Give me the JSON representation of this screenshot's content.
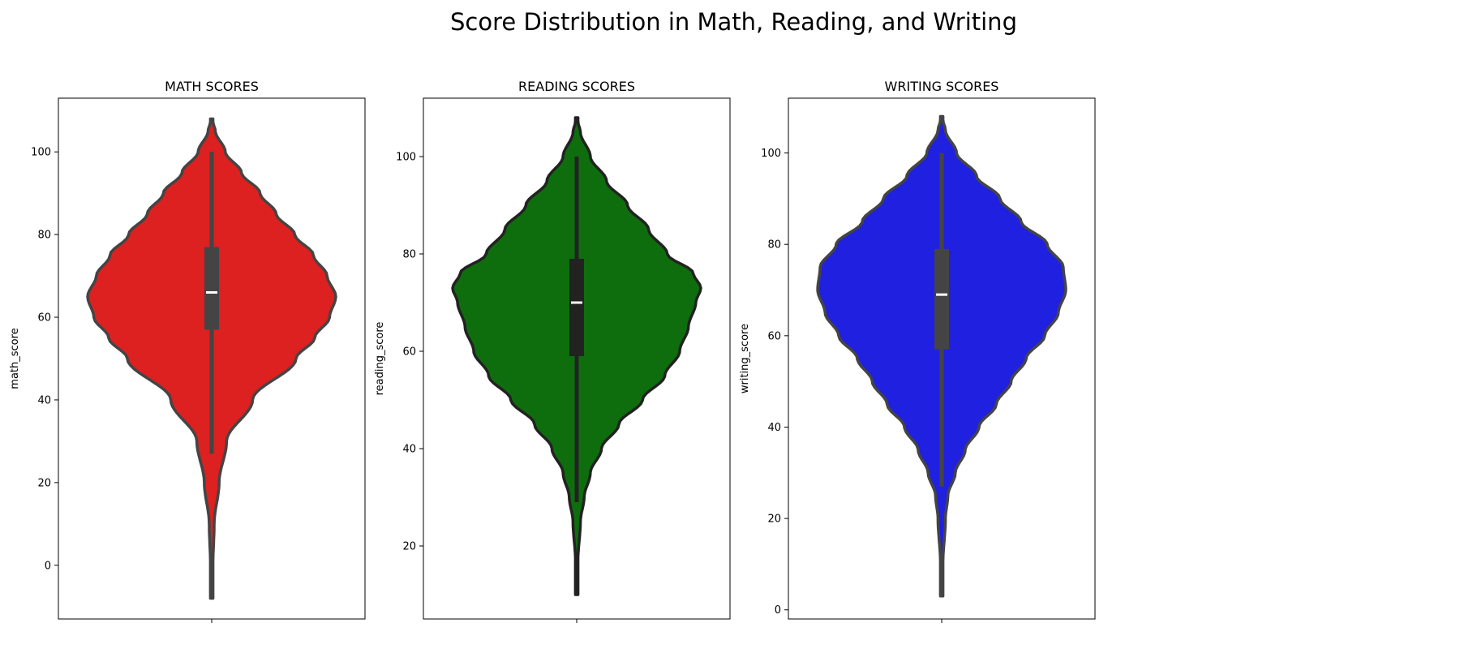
{
  "figure_title": "Score Distribution in Math, Reading, and Writing",
  "chart_data": [
    {
      "type": "violin",
      "title": "MATH SCORES",
      "ylabel": "math_score",
      "xlabel": "",
      "ylim": [
        -13,
        113
      ],
      "yticks": [
        0,
        20,
        40,
        60,
        80,
        100
      ],
      "color": "#dd2020",
      "edge_color": "#444444",
      "grid": false,
      "stats": {
        "min": 0,
        "q1": 57,
        "median": 66,
        "q3": 77,
        "max": 100,
        "whisker_low": 27,
        "whisker_high": 100
      },
      "density_range": [
        -8,
        108
      ],
      "density": [
        [
          -8,
          0.0
        ],
        [
          0,
          0.01
        ],
        [
          10,
          0.02
        ],
        [
          20,
          0.06
        ],
        [
          30,
          0.12
        ],
        [
          40,
          0.33
        ],
        [
          50,
          0.68
        ],
        [
          55,
          0.83
        ],
        [
          60,
          0.95
        ],
        [
          65,
          1.0
        ],
        [
          70,
          0.93
        ],
        [
          75,
          0.82
        ],
        [
          80,
          0.67
        ],
        [
          85,
          0.52
        ],
        [
          90,
          0.39
        ],
        [
          95,
          0.24
        ],
        [
          100,
          0.11
        ],
        [
          105,
          0.03
        ],
        [
          108,
          0.0
        ]
      ]
    },
    {
      "type": "violin",
      "title": "READING SCORES",
      "ylabel": "reading_score",
      "xlabel": "",
      "ylim": [
        5,
        112
      ],
      "yticks": [
        20,
        40,
        60,
        80,
        100
      ],
      "color": "#0e6e0e",
      "edge_color": "#222222",
      "grid": false,
      "stats": {
        "min": 17,
        "q1": 59,
        "median": 70,
        "q3": 79,
        "max": 100,
        "whisker_low": 29,
        "whisker_high": 100
      },
      "density_range": [
        10,
        108
      ],
      "density": [
        [
          10,
          0.0
        ],
        [
          17,
          0.01
        ],
        [
          25,
          0.03
        ],
        [
          30,
          0.06
        ],
        [
          35,
          0.11
        ],
        [
          40,
          0.2
        ],
        [
          45,
          0.34
        ],
        [
          50,
          0.53
        ],
        [
          55,
          0.71
        ],
        [
          60,
          0.83
        ],
        [
          65,
          0.9
        ],
        [
          70,
          0.96
        ],
        [
          73,
          1.0
        ],
        [
          76,
          0.94
        ],
        [
          80,
          0.73
        ],
        [
          85,
          0.58
        ],
        [
          90,
          0.41
        ],
        [
          95,
          0.24
        ],
        [
          100,
          0.11
        ],
        [
          105,
          0.03
        ],
        [
          108,
          0.0
        ]
      ]
    },
    {
      "type": "violin",
      "title": "WRITING SCORES",
      "ylabel": "writing_score",
      "xlabel": "",
      "ylim": [
        -2,
        112
      ],
      "yticks": [
        0,
        20,
        40,
        60,
        80,
        100
      ],
      "color": "#2020e0",
      "edge_color": "#444444",
      "grid": false,
      "stats": {
        "min": 10,
        "q1": 57,
        "median": 69,
        "q3": 79,
        "max": 100,
        "whisker_low": 27,
        "whisker_high": 100
      },
      "density_range": [
        3,
        108
      ],
      "density": [
        [
          3,
          0.0
        ],
        [
          10,
          0.01
        ],
        [
          20,
          0.03
        ],
        [
          25,
          0.05
        ],
        [
          30,
          0.11
        ],
        [
          35,
          0.19
        ],
        [
          40,
          0.3
        ],
        [
          45,
          0.44
        ],
        [
          50,
          0.56
        ],
        [
          55,
          0.68
        ],
        [
          60,
          0.83
        ],
        [
          65,
          0.94
        ],
        [
          70,
          1.0
        ],
        [
          75,
          0.98
        ],
        [
          80,
          0.85
        ],
        [
          85,
          0.64
        ],
        [
          90,
          0.47
        ],
        [
          95,
          0.28
        ],
        [
          100,
          0.12
        ],
        [
          105,
          0.03
        ],
        [
          108,
          0.0
        ]
      ]
    }
  ]
}
